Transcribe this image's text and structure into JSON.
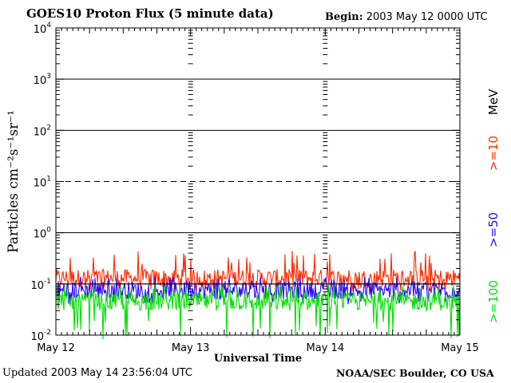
{
  "header": {
    "title": "GOES10 Proton Flux (5 minute data)",
    "begin_label": "Begin:",
    "begin_value": "2003 May 12 0000 UTC"
  },
  "footer": {
    "updated_label": "Updated",
    "updated_value": "2003 May 14 23:56:04 UTC",
    "credit": "NOAA/SEC Boulder, CO USA"
  },
  "chart_data": {
    "type": "line",
    "xlabel": "Universal Time",
    "ylabel": "Particles cm⁻²s⁻¹sr⁻¹",
    "yscale": "log",
    "ylim": [
      0.01,
      10000
    ],
    "ytick_labels": [
      {
        "base": "10",
        "exp": "-2"
      },
      {
        "base": "10",
        "exp": "-1"
      },
      {
        "base": "10",
        "exp": "0"
      },
      {
        "base": "10",
        "exp": "1"
      },
      {
        "base": "10",
        "exp": "2"
      },
      {
        "base": "10",
        "exp": "3"
      },
      {
        "base": "10",
        "exp": "4"
      }
    ],
    "x_ticks": [
      "May 12",
      "May 13",
      "May 14",
      "May 15"
    ],
    "xlim_days": [
      0,
      3
    ],
    "grid": "horizontal",
    "threshold_dashed_at": 10,
    "legend_placement": "right-vertical",
    "legend_unit": "MeV",
    "colors": {
      "gt10": "#ff2a00",
      "gt50": "#2a00ff",
      "gt100": "#00e000",
      "axis": "#000000"
    },
    "series": [
      {
        "name": ">=10",
        "color": "#ff2a00",
        "typical": 0.13,
        "min": 0.07,
        "max": 0.45
      },
      {
        "name": ">=50",
        "color": "#2a00ff",
        "typical": 0.075,
        "min": 0.04,
        "max": 0.14
      },
      {
        "name": ">=100",
        "color": "#00e000",
        "typical": 0.045,
        "min": 0.008,
        "max": 0.1
      }
    ],
    "reference_line": 0.1
  }
}
